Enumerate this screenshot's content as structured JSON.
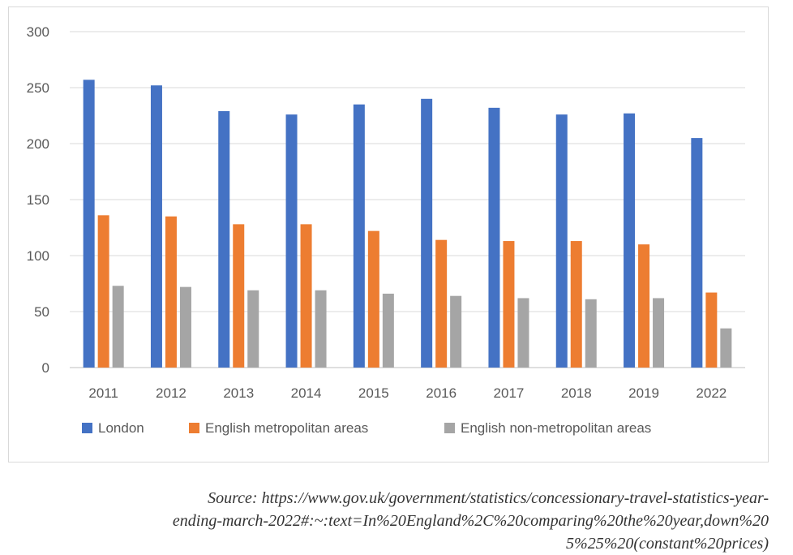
{
  "chart_data": {
    "type": "bar",
    "title": "",
    "xlabel": "",
    "ylabel": "",
    "ylim": [
      0,
      300
    ],
    "yticks": [
      0,
      50,
      100,
      150,
      200,
      250,
      300
    ],
    "grid": true,
    "legend_position": "bottom",
    "categories": [
      "2011",
      "2012",
      "2013",
      "2014",
      "2015",
      "2016",
      "2017",
      "2018",
      "2019",
      "2022"
    ],
    "series": [
      {
        "name": "London",
        "color": "#4472c4",
        "values": [
          257,
          252,
          229,
          226,
          235,
          240,
          232,
          226,
          227,
          205
        ]
      },
      {
        "name": "English metropolitan areas",
        "color": "#ed7d31",
        "values": [
          136,
          135,
          128,
          128,
          122,
          114,
          113,
          113,
          110,
          67
        ]
      },
      {
        "name": "English non-metropolitan areas",
        "color": "#a5a5a5",
        "values": [
          73,
          72,
          69,
          69,
          66,
          64,
          62,
          61,
          62,
          35
        ]
      }
    ]
  },
  "source": {
    "line1": "Source: https://www.gov.uk/government/statistics/concessionary-travel-statistics-year-",
    "line2": "ending-march-2022#:~:text=In%20England%2C%20comparing%20the%20year,down%20",
    "line3": "5%25%20(constant%20prices)"
  }
}
